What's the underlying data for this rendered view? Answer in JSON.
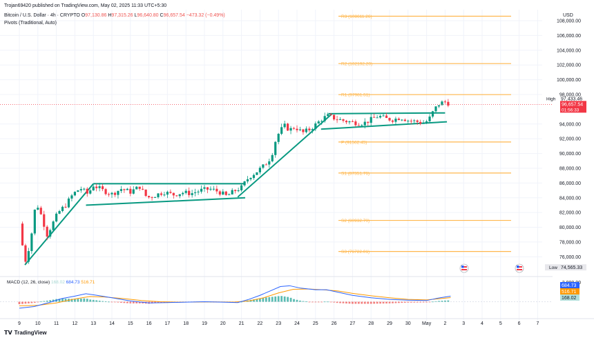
{
  "header": {
    "published": "Trojan69420 published on TradingView.com, May 02, 2025 11:33 UTC+5:30",
    "symbol": "Bitcoin / U.S. Dollar · 4h · CRYPTO",
    "open_label": "O",
    "open": "97,130.86",
    "high_label": "H",
    "high": "97,315.26",
    "low_label": "L",
    "low": "96,640.80",
    "close_label": "C",
    "close": "96,657.54",
    "change": "−473.32 (−0.49%)",
    "indicator": "Pivots (Traditional, Auto)",
    "currency": "USD"
  },
  "footer": {
    "logo": "TradingView"
  },
  "chart_data": {
    "type": "candlestick",
    "ylim": [
      73600,
      109500
    ],
    "y_ticks": [
      {
        "value": 108000,
        "label": "108,000.00"
      },
      {
        "value": 106000,
        "label": "106,000.00"
      },
      {
        "value": 104000,
        "label": "104,000.00"
      },
      {
        "value": 102000,
        "label": "102,000.00"
      },
      {
        "value": 100000,
        "label": "100,000.00"
      },
      {
        "value": 98000,
        "label": "98,000.00"
      },
      {
        "value": 94000,
        "label": "94,000.00"
      },
      {
        "value": 92000,
        "label": "92,000.00"
      },
      {
        "value": 90000,
        "label": "90,000.00"
      },
      {
        "value": 88000,
        "label": "88,000.00"
      },
      {
        "value": 86000,
        "label": "86,000.00"
      },
      {
        "value": 84000,
        "label": "84,000.00"
      },
      {
        "value": 82000,
        "label": "82,000.00"
      },
      {
        "value": 80000,
        "label": "80,000.00"
      },
      {
        "value": 78000,
        "label": "78,000.00"
      },
      {
        "value": 76000,
        "label": "76,000.00"
      }
    ],
    "x_ticks": [
      "9",
      "10",
      "11",
      "12",
      "13",
      "14",
      "15",
      "16",
      "17",
      "18",
      "19",
      "20",
      "21",
      "22",
      "23",
      "24",
      "25",
      "26",
      "27",
      "28",
      "29",
      "30",
      "May",
      "2",
      "3",
      "4",
      "5",
      "6",
      "7"
    ],
    "pivots": [
      {
        "label": "R3 (108611.26)",
        "value": 108611.26
      },
      {
        "label": "R2 (102192.20)",
        "value": 102192.2
      },
      {
        "label": "R1 (97981.51)",
        "value": 97981.51
      },
      {
        "label": "P (91562.45)",
        "value": 91562.45
      },
      {
        "label": "S1 (87351.76)",
        "value": 87351.76
      },
      {
        "label": "S2 (80932.70)",
        "value": 80932.7
      },
      {
        "label": "S3 (76722.01)",
        "value": 76722.01
      }
    ],
    "price_markers": {
      "high_label": "High",
      "high_value": 97433.46,
      "high_text": "97,433.46",
      "last_value": 96657.54,
      "last_text": "96,657.54",
      "countdown": "01:56:33",
      "low_label": "Low",
      "low_value": 74565.33,
      "low_text": "74,565.33"
    },
    "trendlines": [
      {
        "from": [
          9.3,
          74900
        ],
        "to": [
          13.0,
          85900
        ]
      },
      {
        "from": [
          13.0,
          85900
        ],
        "to": [
          21.2,
          85900
        ]
      },
      {
        "from": [
          12.6,
          83000
        ],
        "to": [
          21.2,
          84000
        ]
      },
      {
        "from": [
          20.8,
          84100
        ],
        "to": [
          25.9,
          95400
        ]
      },
      {
        "from": [
          25.7,
          95400
        ],
        "to": [
          32.0,
          95500
        ]
      },
      {
        "from": [
          25.3,
          93300
        ],
        "to": [
          32.1,
          94300
        ]
      }
    ],
    "anchors": [
      [
        9.0,
        80500
      ],
      [
        9.3,
        75200
      ],
      [
        9.6,
        78000
      ],
      [
        9.9,
        83500
      ],
      [
        10.2,
        81500
      ],
      [
        10.5,
        79000
      ],
      [
        10.8,
        80500
      ],
      [
        11.1,
        82000
      ],
      [
        11.5,
        83000
      ],
      [
        11.9,
        84500
      ],
      [
        12.3,
        85300
      ],
      [
        12.7,
        84500
      ],
      [
        13.0,
        85700
      ],
      [
        13.5,
        85000
      ],
      [
        14.0,
        84500
      ],
      [
        14.5,
        85200
      ],
      [
        15.0,
        84800
      ],
      [
        15.5,
        85500
      ],
      [
        15.9,
        84000
      ],
      [
        16.3,
        84300
      ],
      [
        16.8,
        84800
      ],
      [
        17.3,
        84400
      ],
      [
        17.8,
        84700
      ],
      [
        18.3,
        84600
      ],
      [
        18.8,
        85000
      ],
      [
        19.3,
        85200
      ],
      [
        19.8,
        84800
      ],
      [
        20.2,
        84200
      ],
      [
        20.6,
        84900
      ],
      [
        21.0,
        85400
      ],
      [
        21.4,
        86800
      ],
      [
        21.8,
        87500
      ],
      [
        22.2,
        88300
      ],
      [
        22.6,
        89500
      ],
      [
        22.9,
        92300
      ],
      [
        23.3,
        93800
      ],
      [
        23.6,
        93200
      ],
      [
        23.9,
        93600
      ],
      [
        24.3,
        92800
      ],
      [
        24.7,
        93300
      ],
      [
        25.0,
        93900
      ],
      [
        25.4,
        94800
      ],
      [
        25.7,
        95100
      ],
      [
        26.1,
        94700
      ],
      [
        26.6,
        94400
      ],
      [
        27.1,
        94200
      ],
      [
        27.6,
        94100
      ],
      [
        28.0,
        94600
      ],
      [
        28.4,
        95100
      ],
      [
        28.8,
        94700
      ],
      [
        29.2,
        94600
      ],
      [
        29.6,
        94900
      ],
      [
        30.0,
        94500
      ],
      [
        30.5,
        94300
      ],
      [
        30.9,
        94100
      ],
      [
        31.2,
        94900
      ],
      [
        31.4,
        95900
      ],
      [
        31.7,
        96800
      ],
      [
        32.0,
        97000
      ],
      [
        32.3,
        96700
      ]
    ],
    "macd": {
      "label": "MACD (12, 26, close)",
      "values": [
        "168.02",
        "684.73",
        "516.71"
      ],
      "axis_label": "2,000.00",
      "colors": {
        "macd": "#2962ff",
        "signal": "#ff9800",
        "hist_up": "#26a69a",
        "hist_down": "#ef5350"
      },
      "macd_line": [
        [
          9.0,
          -800
        ],
        [
          9.8,
          -600
        ],
        [
          10.6,
          -100
        ],
        [
          11.3,
          400
        ],
        [
          12.0,
          700
        ],
        [
          12.6,
          1000
        ],
        [
          13.2,
          800
        ],
        [
          14.0,
          500
        ],
        [
          15.0,
          100
        ],
        [
          16.0,
          -150
        ],
        [
          17.0,
          -100
        ],
        [
          18.0,
          -50
        ],
        [
          19.0,
          0
        ],
        [
          20.0,
          -50
        ],
        [
          20.8,
          -100
        ],
        [
          21.4,
          300
        ],
        [
          22.0,
          800
        ],
        [
          22.6,
          1400
        ],
        [
          23.1,
          1900
        ],
        [
          23.6,
          2000
        ],
        [
          24.2,
          1700
        ],
        [
          25.0,
          1500
        ],
        [
          25.6,
          1500
        ],
        [
          26.2,
          1200
        ],
        [
          27.0,
          800
        ],
        [
          28.0,
          500
        ],
        [
          29.0,
          300
        ],
        [
          30.0,
          200
        ],
        [
          31.0,
          150
        ],
        [
          31.6,
          450
        ],
        [
          32.3,
          700
        ]
      ],
      "signal_line": [
        [
          9.0,
          -500
        ],
        [
          10.0,
          -450
        ],
        [
          11.0,
          -150
        ],
        [
          12.0,
          350
        ],
        [
          12.8,
          650
        ],
        [
          13.6,
          600
        ],
        [
          14.6,
          400
        ],
        [
          15.6,
          150
        ],
        [
          16.6,
          0
        ],
        [
          17.6,
          -50
        ],
        [
          18.6,
          -30
        ],
        [
          19.6,
          -20
        ],
        [
          20.6,
          -40
        ],
        [
          21.4,
          100
        ],
        [
          22.2,
          500
        ],
        [
          23.0,
          1100
        ],
        [
          23.8,
          1550
        ],
        [
          24.6,
          1600
        ],
        [
          25.4,
          1500
        ],
        [
          26.2,
          1350
        ],
        [
          27.0,
          1050
        ],
        [
          28.0,
          750
        ],
        [
          29.0,
          500
        ],
        [
          30.0,
          300
        ],
        [
          31.0,
          230
        ],
        [
          31.8,
          400
        ],
        [
          32.3,
          520
        ]
      ],
      "ylim": [
        -900,
        2200
      ]
    }
  }
}
